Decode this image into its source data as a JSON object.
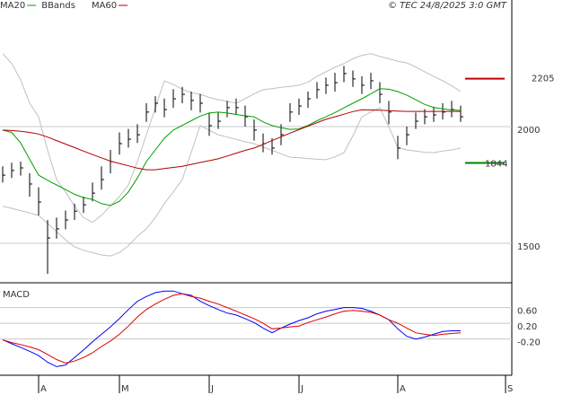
{
  "header": {
    "copyright": "© TEC 24/8/2025 3:0 GMT"
  },
  "chart_data": [
    {
      "type": "ohlc",
      "categories": [
        null,
        null,
        null,
        null,
        "A",
        null,
        null,
        null,
        null,
        null,
        null,
        null,
        null,
        "M",
        null,
        null,
        null,
        null,
        null,
        null,
        null,
        null,
        null,
        "J",
        null,
        null,
        null,
        null,
        null,
        null,
        null,
        null,
        null,
        "J",
        null,
        null,
        null,
        null,
        null,
        null,
        null,
        null,
        null,
        null,
        "A",
        null,
        null,
        null,
        null,
        null,
        null,
        null,
        null,
        null,
        null,
        null,
        "S"
      ],
      "ohlc": {
        "color": "#000000",
        "high": [
          1830,
          1845,
          1850,
          1800,
          1740,
          1600,
          1610,
          1640,
          1670,
          1700,
          1760,
          1830,
          1900,
          1975,
          1990,
          2010,
          2100,
          2130,
          2120,
          2160,
          2170,
          2150,
          2140,
          2060,
          2060,
          2110,
          2120,
          2090,
          2030,
          1970,
          1950,
          2010,
          2100,
          2120,
          2150,
          2190,
          2210,
          2230,
          2260,
          2240,
          2215,
          2230,
          2190,
          2110,
          1960,
          2000,
          2060,
          2075,
          2085,
          2100,
          2110,
          2090,
          null,
          null,
          null,
          null,
          null
        ],
        "low": [
          1760,
          1780,
          1790,
          1700,
          1620,
          1369,
          1520,
          1560,
          1600,
          1630,
          1680,
          1730,
          1800,
          1880,
          1910,
          1930,
          2020,
          2060,
          2040,
          2080,
          2100,
          2070,
          2060,
          1960,
          1990,
          2040,
          2050,
          2000,
          1940,
          1890,
          1880,
          1920,
          2020,
          2050,
          2080,
          2120,
          2140,
          2150,
          2190,
          2170,
          2140,
          2160,
          2100,
          2010,
          1860,
          1920,
          1990,
          2010,
          2020,
          2030,
          2040,
          2020,
          null,
          null,
          null,
          null,
          null
        ],
        "close": [
          1792,
          1812,
          1823,
          1754,
          1677,
          1523,
          1562,
          1600,
          1638,
          1665,
          1715,
          1773,
          1850,
          1927,
          1946,
          1965,
          2062,
          2100,
          2073,
          2119,
          2138,
          2112,
          2100,
          2004,
          2023,
          2081,
          2081,
          2042,
          1985,
          1927,
          1908,
          1965,
          2062,
          2088,
          2119,
          2158,
          2177,
          2188,
          2227,
          2204,
          2177,
          2196,
          2138,
          2062,
          1908,
          1965,
          2023,
          2042,
          2050,
          2062,
          2073,
          2042,
          null,
          null,
          null,
          null,
          null
        ]
      },
      "overlays": [
        {
          "name": "MA20",
          "color": "#00a000",
          "values": [
            1985,
            1975,
            1930,
            1860,
            1792,
            1770,
            1750,
            1730,
            1710,
            1696,
            1688,
            1670,
            1662,
            1680,
            1720,
            1780,
            1850,
            1900,
            1950,
            1985,
            2005,
            2025,
            2045,
            2058,
            2062,
            2058,
            2052,
            2046,
            2042,
            2020,
            2004,
            1995,
            1988,
            1990,
            2005,
            2025,
            2042,
            2060,
            2080,
            2100,
            2119,
            2140,
            2162,
            2160,
            2150,
            2135,
            2115,
            2095,
            2082,
            2076,
            2071,
            2069,
            null,
            null,
            null,
            null,
            null
          ]
        },
        {
          "name": "BBands",
          "color": "#c0c0c0",
          "upper": [
            2312,
            2270,
            2200,
            2100,
            2042,
            1900,
            1773,
            1720,
            1660,
            1610,
            1590,
            1620,
            1660,
            1700,
            1750,
            1850,
            1965,
            2080,
            2196,
            2180,
            2160,
            2145,
            2138,
            2125,
            2115,
            2108,
            2100,
            2120,
            2140,
            2158,
            2162,
            2168,
            2172,
            2177,
            2190,
            2215,
            2235,
            2254,
            2270,
            2290,
            2305,
            2312,
            2300,
            2290,
            2280,
            2273,
            2255,
            2235,
            2215,
            2196,
            2175,
            2150,
            null,
            null,
            null,
            null,
            null
          ],
          "lower": [
            1658,
            1650,
            1640,
            1630,
            1619,
            1585,
            1550,
            1515,
            1485,
            1470,
            1460,
            1450,
            1446,
            1460,
            1490,
            1530,
            1562,
            1610,
            1670,
            1720,
            1773,
            1890,
            2004,
            1985,
            1965,
            1955,
            1945,
            1935,
            1927,
            1912,
            1898,
            1884,
            1869,
            1866,
            1863,
            1860,
            1858,
            1870,
            1888,
            1960,
            2042,
            2062,
            2081,
            2000,
            1910,
            1900,
            1895,
            1890,
            1888,
            1895,
            1900,
            1908,
            null,
            null,
            null,
            null,
            null
          ]
        },
        {
          "name": "MA60",
          "color": "#b00000",
          "values": [
            1985,
            1983,
            1980,
            1975,
            1968,
            1955,
            1940,
            1925,
            1910,
            1895,
            1880,
            1866,
            1852,
            1842,
            1832,
            1822,
            1815,
            1815,
            1820,
            1825,
            1830,
            1838,
            1846,
            1854,
            1862,
            1874,
            1886,
            1898,
            1908,
            1924,
            1940,
            1956,
            1972,
            1987,
            2002,
            2017,
            2031,
            2042,
            2053,
            2064,
            2072,
            2071,
            2070,
            2068,
            2066,
            2065,
            2065,
            2065,
            2065,
            2065,
            2065,
            2065,
            null,
            null,
            null,
            null,
            null
          ]
        }
      ],
      "levels": [
        {
          "value": 2205,
          "color": "#c00000"
        },
        {
          "value": 1844,
          "color": "#008000"
        }
      ],
      "ylim": [
        1331,
        2542
      ],
      "yticks": [
        1500,
        2000
      ],
      "grid": true
    },
    {
      "type": "line",
      "title": "MACD",
      "series": [
        {
          "color": "#0000ff",
          "values": [
            -0.22,
            -0.32,
            -0.41,
            -0.51,
            -0.62,
            -0.79,
            -0.9,
            -0.86,
            -0.67,
            -0.48,
            -0.27,
            -0.08,
            0.11,
            0.32,
            0.55,
            0.76,
            0.88,
            0.98,
            1.02,
            1.02,
            0.95,
            0.91,
            0.76,
            0.65,
            0.55,
            0.46,
            0.41,
            0.32,
            0.22,
            0.08,
            -0.04,
            0.08,
            0.18,
            0.27,
            0.34,
            0.44,
            0.51,
            0.55,
            0.6,
            0.6,
            0.58,
            0.51,
            0.41,
            0.29,
            0.06,
            -0.13,
            -0.2,
            -0.15,
            -0.08,
            -0.01,
            0.01,
            0.01,
            null,
            null,
            null,
            null,
            null
          ]
        },
        {
          "color": "#dd0000",
          "values": [
            -0.22,
            -0.29,
            -0.34,
            -0.4,
            -0.47,
            -0.59,
            -0.72,
            -0.81,
            -0.76,
            -0.67,
            -0.55,
            -0.39,
            -0.25,
            -0.08,
            0.13,
            0.36,
            0.55,
            0.69,
            0.81,
            0.91,
            0.95,
            0.88,
            0.84,
            0.76,
            0.69,
            0.6,
            0.51,
            0.41,
            0.32,
            0.2,
            0.06,
            0.08,
            0.11,
            0.13,
            0.22,
            0.29,
            0.36,
            0.44,
            0.51,
            0.53,
            0.51,
            0.48,
            0.41,
            0.29,
            0.2,
            0.08,
            -0.04,
            -0.08,
            -0.11,
            -0.08,
            -0.06,
            -0.04,
            null,
            null,
            null,
            null,
            null
          ]
        }
      ],
      "ylim": [
        -1.12,
        1.23
      ],
      "yticks": [
        {
          "value": 0.6,
          "label": "0.60"
        },
        {
          "value": 0.2,
          "label": "0.20"
        },
        {
          "value": -0.2,
          "label": "-0.20"
        }
      ]
    }
  ]
}
